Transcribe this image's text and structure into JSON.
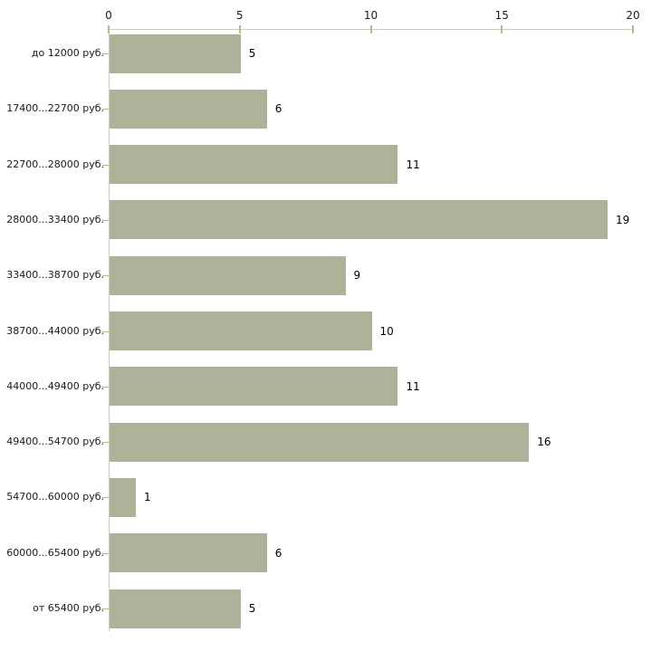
{
  "chart_data": {
    "type": "bar",
    "orientation": "horizontal",
    "title": "",
    "xlabel": "",
    "ylabel": "",
    "xlim": [
      0,
      20
    ],
    "x_ticks": [
      "0",
      "5",
      "10",
      "15",
      "20"
    ],
    "x_tick_values": [
      0,
      5,
      10,
      15,
      20
    ],
    "grid": false,
    "legend": null,
    "axis_position": "top",
    "bar_color": "#adb298",
    "axis_line_color": "#ccccc3",
    "tick_color": "#b8bc86",
    "text_color": "#1a1a1a",
    "categories": [
      "до 12000 руб.",
      "17400...22700 руб.",
      "22700...28000 руб.",
      "28000...33400 руб.",
      "33400...38700 руб.",
      "38700...44000 руб.",
      "44000...49400 руб.",
      "49400...54700 руб.",
      "54700...60000 руб.",
      "60000...65400 руб.",
      "от 65400 руб."
    ],
    "values": [
      5,
      6,
      11,
      19,
      9,
      10,
      11,
      16,
      1,
      6,
      5
    ],
    "value_labels": [
      "5",
      "6",
      "11",
      "19",
      "9",
      "10",
      "11",
      "16",
      "1",
      "6",
      "5"
    ]
  }
}
